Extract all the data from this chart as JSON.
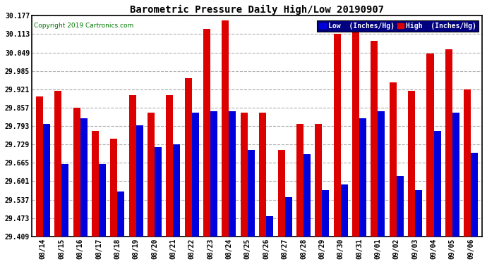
{
  "title": "Barometric Pressure Daily High/Low 20190907",
  "copyright": "Copyright 2019 Cartronics.com",
  "legend_low": "Low  (Inches/Hg)",
  "legend_high": "High  (Inches/Hg)",
  "categories": [
    "08/14",
    "08/15",
    "08/16",
    "08/17",
    "08/18",
    "08/19",
    "08/20",
    "08/21",
    "08/22",
    "08/23",
    "08/24",
    "08/25",
    "08/26",
    "08/27",
    "08/28",
    "08/29",
    "08/30",
    "08/31",
    "09/01",
    "09/02",
    "09/03",
    "09/04",
    "09/05",
    "09/06"
  ],
  "low_values": [
    29.8,
    29.66,
    29.82,
    29.66,
    29.565,
    29.795,
    29.72,
    29.73,
    29.84,
    29.845,
    29.845,
    29.71,
    29.48,
    29.545,
    29.695,
    29.57,
    29.59,
    29.82,
    29.845,
    29.62,
    29.57,
    29.775,
    29.84,
    29.7
  ],
  "high_values": [
    29.895,
    29.915,
    29.858,
    29.775,
    29.75,
    29.9,
    29.84,
    29.9,
    29.96,
    30.13,
    30.16,
    29.84,
    29.84,
    29.71,
    29.8,
    29.8,
    30.115,
    30.16,
    30.09,
    29.945,
    29.915,
    30.045,
    30.06,
    29.92
  ],
  "ylim_min": 29.409,
  "ylim_max": 30.177,
  "yticks": [
    29.409,
    29.473,
    29.537,
    29.601,
    29.665,
    29.729,
    29.793,
    29.857,
    29.921,
    29.985,
    30.049,
    30.113,
    30.177
  ],
  "low_color": "#0000dd",
  "high_color": "#dd0000",
  "bg_color": "#ffffff",
  "grid_color": "#b0b0b0",
  "title_color": "#000000",
  "bar_width": 0.38,
  "figwidth": 6.9,
  "figheight": 3.75,
  "dpi": 100
}
